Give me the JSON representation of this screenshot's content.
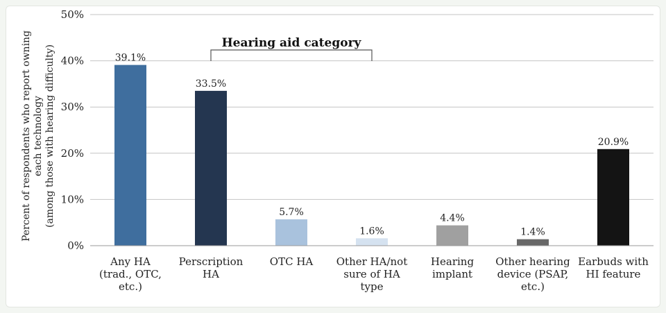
{
  "chart_data": {
    "type": "bar",
    "title": "",
    "ylabel_lines": [
      "Percent of respondents who report owning",
      "each technology",
      "(among those with hearing difficulty)"
    ],
    "ylim": [
      0,
      50
    ],
    "yticks": [
      "0%",
      "10%",
      "20%",
      "30%",
      "40%",
      "50%"
    ],
    "ytick_values": [
      0,
      10,
      20,
      30,
      40,
      50
    ],
    "grid": true,
    "bracket_label": "Hearing aid category",
    "categories": [
      [
        "Any HA",
        "(trad., OTC,",
        "etc.)"
      ],
      [
        "Perscription",
        "HA"
      ],
      [
        "OTC HA"
      ],
      [
        "Other HA/not",
        "sure of HA",
        "type"
      ],
      [
        "Hearing",
        "implant"
      ],
      [
        "Other hearing",
        "device (PSAP,",
        "etc.)"
      ],
      [
        "Earbuds with",
        "HI feature"
      ]
    ],
    "values": [
      39.1,
      33.5,
      5.7,
      1.6,
      4.4,
      1.4,
      20.9
    ],
    "data_labels": [
      "39.1%",
      "33.5%",
      "5.7%",
      "1.6%",
      "4.4%",
      "1.4%",
      "20.9%"
    ],
    "colors": [
      "#3f6e9e",
      "#243650",
      "#a9c2dd",
      "#d5e2f0",
      "#a0a0a0",
      "#686868",
      "#141414"
    ]
  }
}
